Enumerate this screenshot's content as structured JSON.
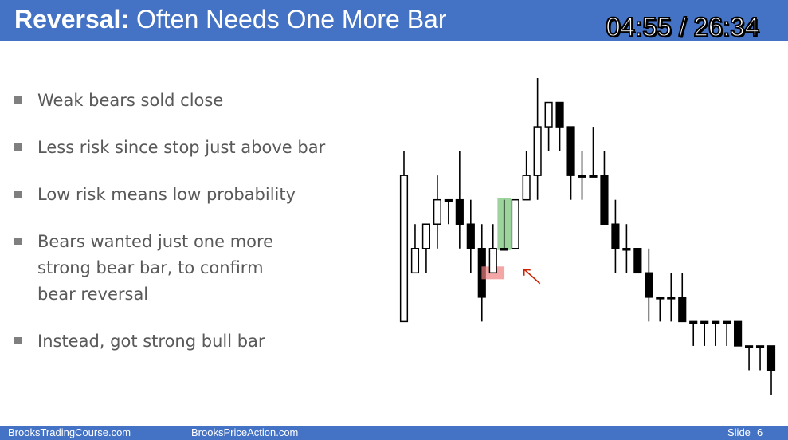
{
  "header": {
    "title_bold": "Reversal:",
    "title_rest": "Often Needs One More Bar",
    "timer": "04:55 / 26:34"
  },
  "bullets": [
    "Weak bears sold close",
    "Less risk since stop just above bar",
    "Low risk means low probability",
    "Bears wanted just one more\nstrong bear bar, to confirm\nbear reversal",
    "Instead, got strong bull bar"
  ],
  "footer": {
    "site1": "BrooksTradingCourse.com",
    "site2": "BrooksPriceAction.com",
    "slide_label": "Slide",
    "slide_number": "6"
  },
  "colors": {
    "header_bg": "#4472c4",
    "bull_highlight": "#5cb85c",
    "bear_highlight": "#f08080",
    "arrow": "#cc2200"
  },
  "chart_data": {
    "type": "candlestick",
    "bars": [
      {
        "o": 39,
        "h": 46,
        "c": 45,
        "l": 40
      },
      {
        "o": 41,
        "h": 43,
        "c": 42,
        "l": 41
      },
      {
        "o": 42,
        "h": 43,
        "c": 43,
        "l": 41
      },
      {
        "o": 43,
        "h": 45,
        "c": 44,
        "l": 42
      },
      {
        "o": 44,
        "h": 44,
        "c": 44,
        "l": 43
      },
      {
        "o": 44,
        "h": 46,
        "c": 43,
        "l": 42
      },
      {
        "o": 43,
        "h": 44,
        "c": 42,
        "l": 41
      },
      {
        "o": 42,
        "h": 43,
        "c": 40,
        "l": 39
      },
      {
        "o": 41,
        "h": 43,
        "c": 42,
        "l": 41
      },
      {
        "o": 42,
        "h": 44,
        "c": 42,
        "l": 42
      },
      {
        "o": 42,
        "h": 44,
        "c": 44,
        "l": 42
      },
      {
        "o": 44,
        "h": 46,
        "c": 45,
        "l": 44
      },
      {
        "o": 45,
        "h": 49,
        "c": 47,
        "l": 44
      },
      {
        "o": 47,
        "h": 48,
        "c": 48,
        "l": 46
      },
      {
        "o": 48,
        "h": 48,
        "c": 47,
        "l": 46
      },
      {
        "o": 47,
        "h": 47,
        "c": 45,
        "l": 44
      },
      {
        "o": 45,
        "h": 46,
        "c": 45,
        "l": 44
      },
      {
        "o": 45,
        "h": 47,
        "c": 45,
        "l": 45
      },
      {
        "o": 45,
        "h": 46,
        "c": 43,
        "l": 43
      },
      {
        "o": 43,
        "h": 44,
        "c": 42,
        "l": 41
      },
      {
        "o": 42,
        "h": 43,
        "c": 42,
        "l": 41
      },
      {
        "o": 42,
        "h": 42,
        "c": 41,
        "l": 41
      },
      {
        "o": 41,
        "h": 42,
        "c": 40,
        "l": 39
      },
      {
        "o": 40,
        "h": 40,
        "c": 40,
        "l": 39
      },
      {
        "o": 40,
        "h": 41,
        "c": 40,
        "l": 39
      },
      {
        "o": 40,
        "h": 41,
        "c": 39,
        "l": 39
      },
      {
        "o": 39,
        "h": 39,
        "c": 39,
        "l": 38
      },
      {
        "o": 39,
        "h": 39,
        "c": 39,
        "l": 38
      },
      {
        "o": 39,
        "h": 39,
        "c": 39,
        "l": 38
      },
      {
        "o": 39,
        "h": 39,
        "c": 39,
        "l": 38
      },
      {
        "o": 39,
        "h": 38,
        "c": 38,
        "l": 38
      },
      {
        "o": 38,
        "h": 38,
        "c": 38,
        "l": 37
      },
      {
        "o": 38,
        "h": 38,
        "c": 38,
        "l": 37
      },
      {
        "o": 38,
        "h": 38,
        "c": 37,
        "l": 36
      }
    ],
    "highlight_bull_bar": 9,
    "highlight_bear_bar": 8
  }
}
